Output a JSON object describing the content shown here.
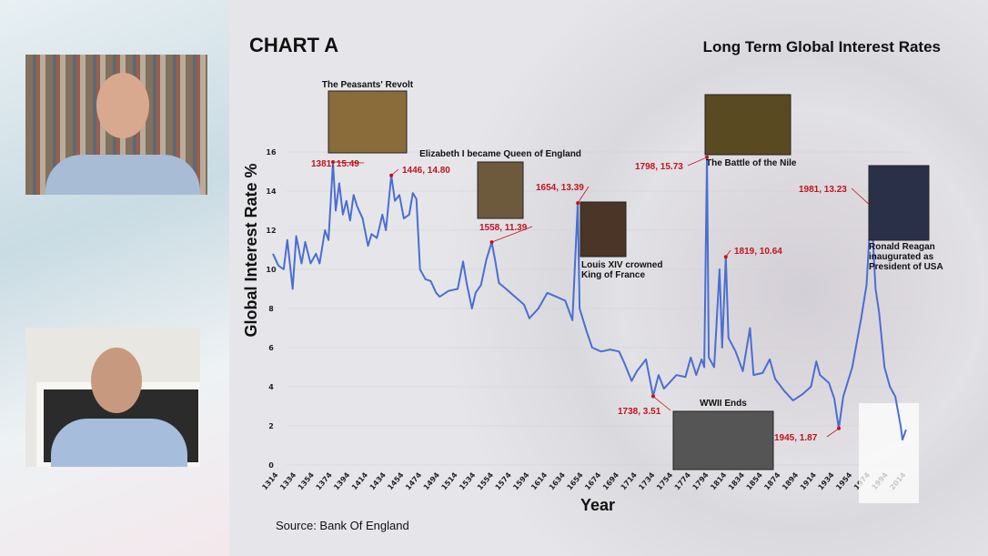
{
  "chart_data": {
    "type": "line",
    "title": "Long Term Global Interest Rates",
    "label": "CHART A",
    "xlabel": "Year",
    "ylabel": "Global Interest Rate %",
    "source": "Source: Bank Of England",
    "ylim": [
      0,
      16
    ],
    "yticks": [
      0,
      2,
      4,
      6,
      8,
      10,
      12,
      14,
      16
    ],
    "xlim": [
      1314,
      2020
    ],
    "xticks": [
      1314,
      1334,
      1354,
      1374,
      1394,
      1414,
      1434,
      1454,
      1474,
      1494,
      1514,
      1534,
      1554,
      1574,
      1594,
      1614,
      1634,
      1654,
      1674,
      1694,
      1714,
      1734,
      1754,
      1774,
      1794,
      1814,
      1834,
      1854,
      1874,
      1894,
      1914,
      1934,
      1954,
      1974,
      1994,
      2014
    ],
    "grid": true,
    "line_color": "#4a6fd0",
    "annotation_color": "#c0141c",
    "series": [
      {
        "x": [
          1314,
          1320,
          1326,
          1330,
          1336,
          1340,
          1346,
          1350,
          1356,
          1362,
          1366,
          1372,
          1376,
          1381,
          1384,
          1388,
          1392,
          1396,
          1400,
          1404,
          1408,
          1414,
          1420,
          1424,
          1430,
          1436,
          1440,
          1446,
          1450,
          1455,
          1460,
          1466,
          1470,
          1474,
          1478,
          1484,
          1490,
          1496,
          1500,
          1510,
          1520,
          1526,
          1530,
          1536,
          1540,
          1546,
          1552,
          1558,
          1562,
          1566,
          1574,
          1584,
          1594,
          1600,
          1610,
          1620,
          1630,
          1640,
          1648,
          1654,
          1656,
          1664,
          1670,
          1680,
          1690,
          1700,
          1706,
          1714,
          1720,
          1730,
          1738,
          1744,
          1750,
          1756,
          1764,
          1774,
          1780,
          1786,
          1792,
          1795,
          1798,
          1800,
          1806,
          1812,
          1815,
          1819,
          1822,
          1830,
          1838,
          1846,
          1850,
          1860,
          1868,
          1874,
          1884,
          1894,
          1904,
          1914,
          1920,
          1924,
          1934,
          1940,
          1945,
          1950,
          1960,
          1970,
          1976,
          1981,
          1986,
          1990,
          1996,
          2002,
          2008,
          2014,
          2016,
          2020
        ],
        "y": [
          10.8,
          10.2,
          10.0,
          11.5,
          9.0,
          11.7,
          10.3,
          11.4,
          10.3,
          10.8,
          10.3,
          12.0,
          11.5,
          15.49,
          13.0,
          14.4,
          12.8,
          13.5,
          12.5,
          13.8,
          13.2,
          12.6,
          11.2,
          11.8,
          11.6,
          12.8,
          12.0,
          14.8,
          13.5,
          13.8,
          12.6,
          12.8,
          13.9,
          13.6,
          10.0,
          9.5,
          9.4,
          8.8,
          8.6,
          8.9,
          9.0,
          10.4,
          9.3,
          8.0,
          8.8,
          9.2,
          10.5,
          11.39,
          10.4,
          9.3,
          9.0,
          8.6,
          8.2,
          7.5,
          8.0,
          8.8,
          8.6,
          8.4,
          7.4,
          13.39,
          8.0,
          6.8,
          6.0,
          5.8,
          5.9,
          5.8,
          5.2,
          4.3,
          4.8,
          5.4,
          3.51,
          4.6,
          3.9,
          4.2,
          4.6,
          4.5,
          5.5,
          4.6,
          5.4,
          5.0,
          15.73,
          5.5,
          5.0,
          10.0,
          6.0,
          10.64,
          6.5,
          5.8,
          4.8,
          7.0,
          4.6,
          4.7,
          5.4,
          4.4,
          3.8,
          3.3,
          3.6,
          4.0,
          5.3,
          4.6,
          4.2,
          3.4,
          1.87,
          3.5,
          5.0,
          7.5,
          9.2,
          13.23,
          9.0,
          7.8,
          5.0,
          4.0,
          3.5,
          2.0,
          1.3,
          1.8
        ]
      }
    ],
    "annotations": [
      {
        "year": 1381,
        "value": 15.49,
        "text": "1381, 15.49",
        "event": "The Peasants' Revolt"
      },
      {
        "year": 1446,
        "value": 14.8,
        "text": "1446, 14.80",
        "event": ""
      },
      {
        "year": 1558,
        "value": 11.39,
        "text": "1558, 11.39",
        "event": "Elizabeth I became Queen of England"
      },
      {
        "year": 1654,
        "value": 13.39,
        "text": "1654, 13.39",
        "event": "Louis XIV crowned King of France"
      },
      {
        "year": 1738,
        "value": 3.51,
        "text": "1738, 3.51",
        "event": ""
      },
      {
        "year": 1798,
        "value": 15.73,
        "text": "1798, 15.73",
        "event": "The Battle of the Nile"
      },
      {
        "year": 1819,
        "value": 10.64,
        "text": "1819, 10.64",
        "event": ""
      },
      {
        "year": 1945,
        "value": 1.87,
        "text": "1945, 1.87",
        "event": "WWII Ends"
      },
      {
        "year": 1981,
        "value": 13.23,
        "text": "1981, 13.23",
        "event": "Ronald Reagan inaugurated as President of USA"
      }
    ]
  }
}
